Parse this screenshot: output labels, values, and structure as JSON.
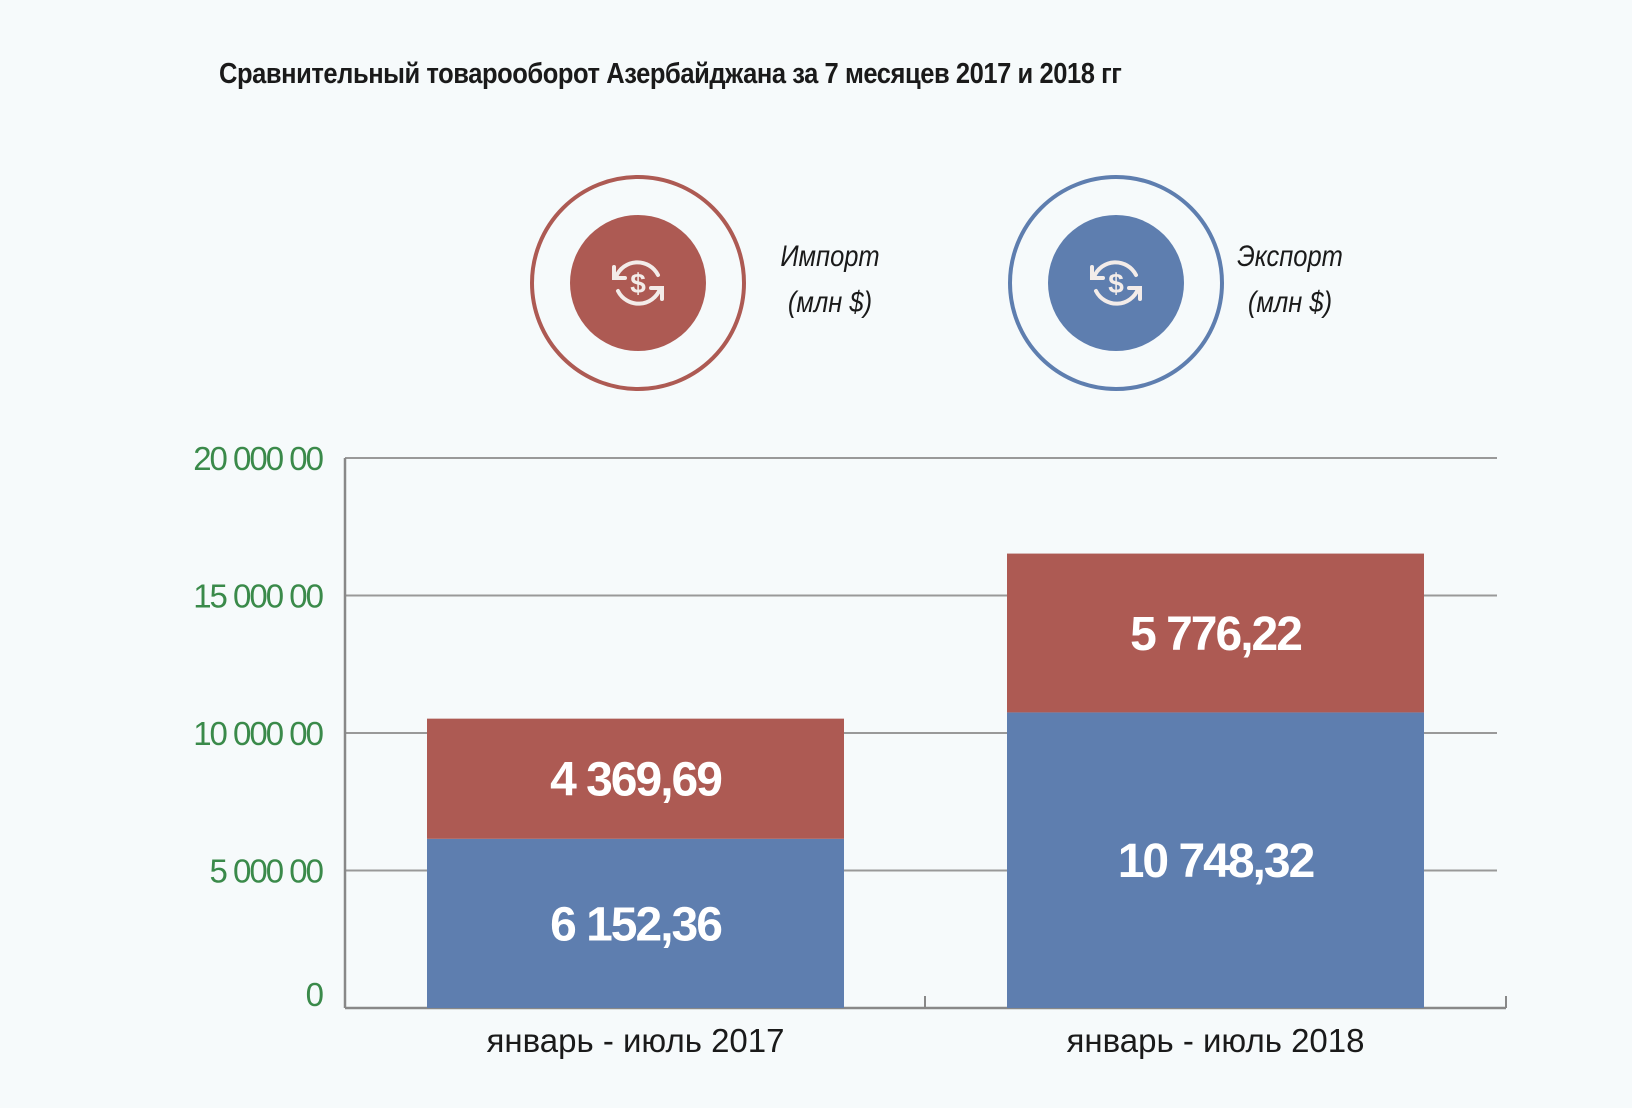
{
  "chart_data": {
    "type": "bar",
    "stacked": true,
    "title": "Сравнительный товарооборот Азербайджана за 7 месяцев 2017 и 2018 гг",
    "categories": [
      "январь - июль 2017",
      "январь - июль 2018"
    ],
    "series": [
      {
        "name": "Экспорт (млн $)",
        "color": "#5e7eaf",
        "values": [
          6152.36,
          10748.32
        ],
        "labels": [
          "6 152,36",
          "10 748,32"
        ]
      },
      {
        "name": "Импорт (млн $)",
        "color": "#ad5a53",
        "values": [
          4369.69,
          5776.22
        ],
        "labels": [
          "4 369,69",
          "5 776,22"
        ]
      }
    ],
    "ylim": [
      0,
      20000
    ],
    "yticks": [
      0,
      5000,
      10000,
      15000,
      20000
    ],
    "ytick_labels": [
      "0",
      "5 000 00",
      "10 000 00",
      "15 000 00",
      "20 000 00"
    ],
    "ytick_color": "#3a8a4a",
    "grid": true,
    "legend": [
      {
        "line1": "Импорт",
        "line2": "(млн $)",
        "color": "#ad5a53",
        "icon": "dollar-exchange-icon"
      },
      {
        "line1": "Экспорт",
        "line2": "(млн $)",
        "color": "#5e7eaf",
        "icon": "dollar-exchange-icon"
      }
    ],
    "legend_position": "top"
  }
}
